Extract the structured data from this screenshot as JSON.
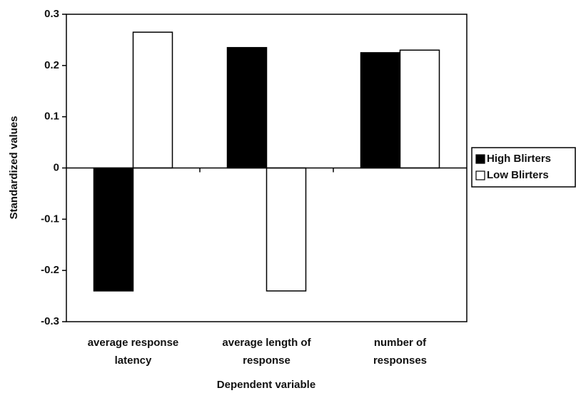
{
  "chart_data": {
    "type": "bar",
    "categories": [
      "average response\nlatency",
      "average length of\nresponse",
      "number of\nresponses"
    ],
    "series": [
      {
        "name": "High Blirters",
        "color": "#000000",
        "values": [
          -0.24,
          0.235,
          0.225
        ]
      },
      {
        "name": "Low Blirters",
        "color": "#ffffff",
        "values": [
          0.265,
          -0.24,
          0.23
        ]
      }
    ],
    "x_label": "Dependent variable",
    "y_label": "Standardized values",
    "ylim": [
      -0.3,
      0.3
    ],
    "yticks": [
      -0.3,
      -0.2,
      -0.1,
      0,
      0.1,
      0.2,
      0.3
    ],
    "legend": "right"
  }
}
